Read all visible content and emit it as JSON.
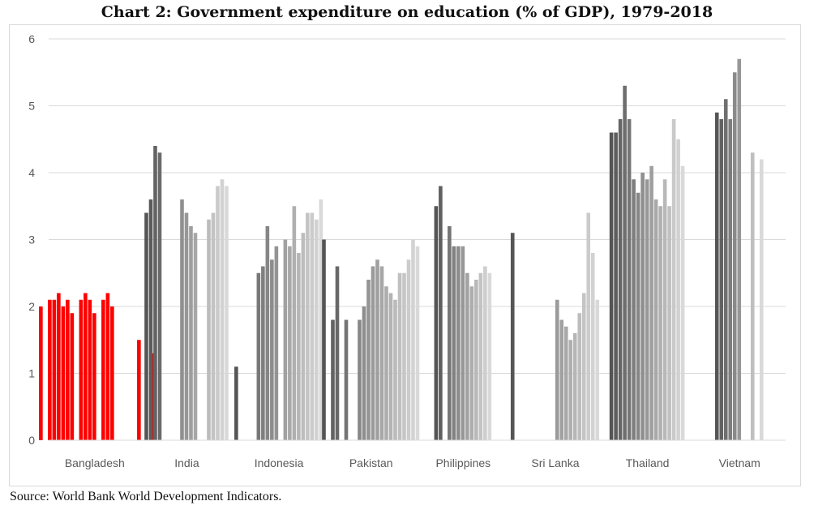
{
  "title": "Chart 2: Government expenditure on education (% of GDP), 1979-2018",
  "source": "Source: World Bank World Development Indicators.",
  "chart_data": {
    "type": "bar",
    "title": "Chart 2: Government expenditure on education (% of GDP), 1979-2018",
    "xlabel": "",
    "ylabel": "",
    "ylim": [
      0,
      6
    ],
    "yticks": [
      0,
      1,
      2,
      3,
      4,
      5,
      6
    ],
    "grid": true,
    "legend": "none",
    "years": [
      1979,
      2018
    ],
    "highlight_color": "#ff0000",
    "base_gray_dark": "#555555",
    "base_gray_light": "#d9d9d9",
    "groups": [
      {
        "name": "Bangladesh",
        "highlight": true,
        "values": [
          null,
          2.0,
          null,
          2.1,
          2.1,
          2.2,
          2.0,
          2.1,
          1.9,
          null,
          2.1,
          2.2,
          2.1,
          1.9,
          null,
          2.1,
          2.2,
          2.0,
          null,
          null,
          null,
          null,
          null,
          1.5,
          null,
          null,
          1.3
        ]
      },
      {
        "name": "India",
        "highlight": false,
        "values": [
          3.4,
          3.6,
          4.4,
          4.3,
          null,
          null,
          null,
          null,
          3.6,
          3.4,
          3.2,
          3.1,
          null,
          null,
          3.3,
          3.4,
          3.8,
          3.9,
          3.8
        ]
      },
      {
        "name": "Indonesia",
        "highlight": false,
        "values": [
          1.1,
          null,
          null,
          null,
          null,
          2.5,
          2.6,
          3.2,
          2.7,
          2.9,
          null,
          3.0,
          2.9,
          3.5,
          2.8,
          3.1,
          3.4,
          3.4,
          3.3,
          3.6
        ]
      },
      {
        "name": "Pakistan",
        "highlight": false,
        "values": [
          3.0,
          null,
          1.8,
          2.6,
          null,
          1.8,
          null,
          null,
          1.8,
          2.0,
          2.4,
          2.6,
          2.7,
          2.6,
          2.3,
          2.2,
          2.1,
          2.5,
          2.5,
          2.7,
          3.0,
          2.9
        ]
      },
      {
        "name": "Philippines",
        "highlight": false,
        "values": [
          3.5,
          3.8,
          null,
          3.2,
          2.9,
          2.9,
          2.9,
          2.5,
          2.3,
          2.4,
          2.5,
          2.6,
          2.5
        ]
      },
      {
        "name": "Sri Lanka",
        "highlight": false,
        "values": [
          3.1,
          null,
          null,
          null,
          null,
          null,
          null,
          null,
          null,
          null,
          2.1,
          1.8,
          1.7,
          1.5,
          1.6,
          1.9,
          2.2,
          3.4,
          2.8,
          2.1
        ]
      },
      {
        "name": "Thailand",
        "highlight": false,
        "values": [
          4.6,
          4.6,
          4.8,
          5.3,
          4.8,
          3.9,
          3.7,
          4.0,
          3.9,
          4.1,
          3.6,
          3.5,
          3.9,
          3.5,
          4.8,
          4.5,
          4.1
        ]
      },
      {
        "name": "Vietnam",
        "highlight": false,
        "values": [
          4.9,
          4.8,
          5.1,
          4.8,
          5.5,
          5.7,
          null,
          null,
          4.3,
          null,
          4.2
        ]
      }
    ]
  }
}
